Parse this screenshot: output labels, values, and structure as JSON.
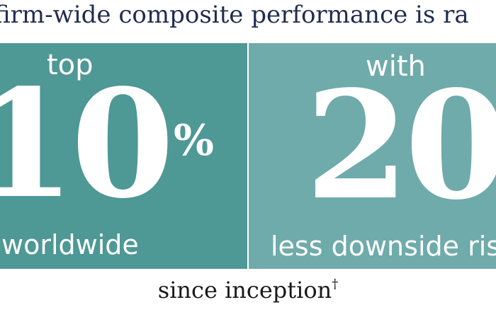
{
  "headline": "firm-wide composite performance is ra",
  "left_panel": {
    "lead": "top",
    "figure": "10",
    "unit": "%",
    "caption": "worldwide",
    "color": "#4e9895"
  },
  "right_panel": {
    "lead": "with",
    "figure": "20",
    "caption": "less downside ris",
    "color": "#6fabaa"
  },
  "footer": {
    "text": "since inception",
    "mark": "†"
  },
  "colors": {
    "headline": "#1f2d4e",
    "footer": "#1a1a1a",
    "panel_text": "#ffffff"
  }
}
